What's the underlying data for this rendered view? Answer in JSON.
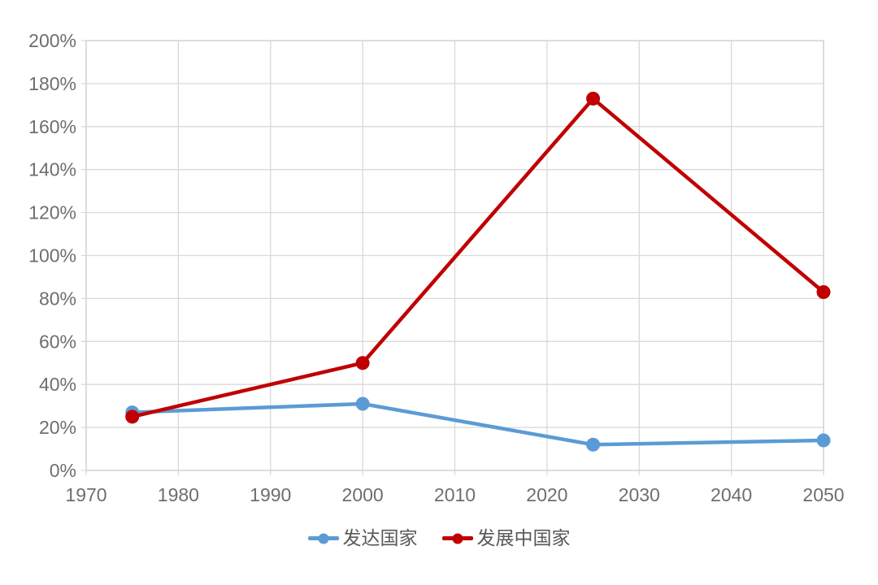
{
  "chart_data": {
    "type": "line",
    "x": [
      1975,
      2000,
      2025,
      2050
    ],
    "series": [
      {
        "name": "发达国家",
        "color": "#5B9BD5",
        "values": [
          27,
          31,
          12,
          14
        ]
      },
      {
        "name": "发展中国家",
        "color": "#C00000",
        "values": [
          25,
          50,
          173,
          83
        ]
      }
    ],
    "title": "",
    "xlabel": "",
    "ylabel": "",
    "xlim": [
      1970,
      2050
    ],
    "ylim": [
      0,
      200
    ],
    "x_ticks": [
      1970,
      1980,
      1990,
      2000,
      2010,
      2020,
      2030,
      2040,
      2050
    ],
    "x_tick_labels": [
      "1970",
      "1980",
      "1990",
      "2000",
      "2010",
      "2020",
      "2030",
      "2040",
      "2050"
    ],
    "y_tick_values": [
      0,
      20,
      40,
      60,
      80,
      100,
      120,
      140,
      160,
      180,
      200
    ],
    "y_tick_labels": [
      "0%",
      "20%",
      "40%",
      "60%",
      "80%",
      "100%",
      "120%",
      "140%",
      "160%",
      "180%",
      "200%"
    ],
    "grid": true,
    "legend_position": "bottom"
  },
  "colors": {
    "gridline": "#D9D9D9",
    "plot_border": "#D0D0D0",
    "tick_text": "#6e6e6e",
    "background": "#ffffff"
  }
}
